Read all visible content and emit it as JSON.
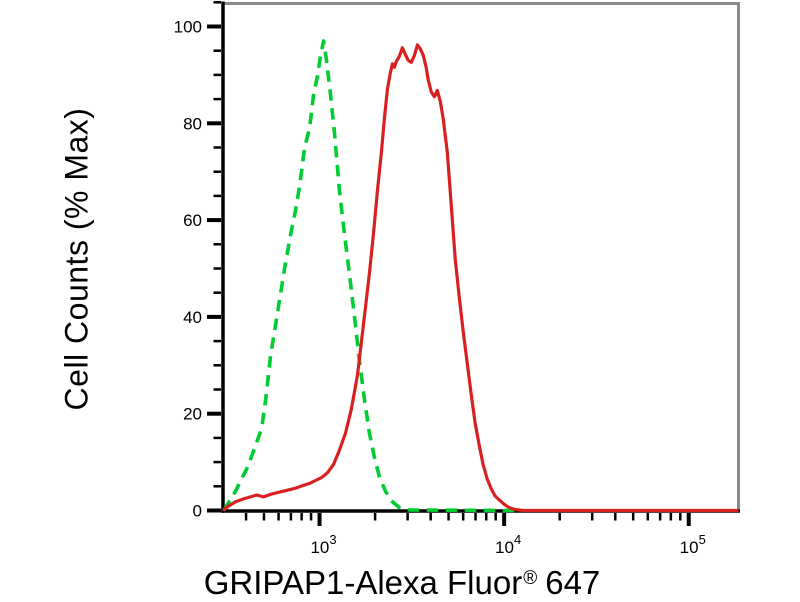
{
  "figure": {
    "background": "#ffffff"
  },
  "chart_data": {
    "type": "line",
    "subtype": "flow-cytometry-histogram",
    "title": "",
    "xlabel": "GRIPAP1-Alexa Fluor® 647",
    "xlabel_parts": {
      "main": "GRIPAP1-Alexa Fluor",
      "registered": "®",
      "suffix": "647"
    },
    "ylabel": "Cell Counts (% Max)",
    "x_scale": "log",
    "x_range": [
      300,
      186000
    ],
    "x_major_ticks": [
      1000,
      10000,
      100000
    ],
    "x_major_tick_labels": [
      "10^3",
      "10^4",
      "10^5"
    ],
    "y_major_ticks": [
      0,
      20,
      40,
      60,
      80,
      100
    ],
    "y_minor_step": 5,
    "ylim": [
      0,
      105
    ],
    "grid": false,
    "legend": false,
    "axis_color": "#000000",
    "frame_color": "#8a8a8a",
    "series": [
      {
        "name": "green-dashed-curve",
        "color": "#00cc33",
        "line_style": "dashed",
        "points": [
          [
            303,
            0
          ],
          [
            326,
            2
          ],
          [
            351,
            4
          ],
          [
            378,
            6.5
          ],
          [
            408,
            9
          ],
          [
            446,
            13
          ],
          [
            486,
            17
          ],
          [
            511,
            23
          ],
          [
            543,
            32
          ],
          [
            593,
            41
          ],
          [
            647,
            50
          ],
          [
            697,
            57
          ],
          [
            741,
            62
          ],
          [
            780,
            67
          ],
          [
            830,
            75
          ],
          [
            883,
            79
          ],
          [
            929,
            86
          ],
          [
            977,
            90
          ],
          [
            1012,
            94
          ],
          [
            1052,
            97
          ],
          [
            1091,
            93
          ],
          [
            1146,
            86
          ],
          [
            1205,
            78
          ],
          [
            1283,
            66
          ],
          [
            1365,
            57
          ],
          [
            1452,
            49
          ],
          [
            1546,
            40
          ],
          [
            1645,
            31
          ],
          [
            1750,
            23
          ],
          [
            1862,
            16
          ],
          [
            1982,
            11
          ],
          [
            2109,
            7
          ],
          [
            2274,
            4
          ],
          [
            2451,
            2
          ],
          [
            2705,
            0.6
          ],
          [
            3063,
            0.1
          ],
          [
            12000,
            0
          ]
        ]
      },
      {
        "name": "red-solid-curve",
        "color": "#d92020",
        "line_style": "solid",
        "points": [
          [
            300,
            0
          ],
          [
            318,
            0.8
          ],
          [
            351,
            1.8
          ],
          [
            388,
            2.4
          ],
          [
            429,
            2.9
          ],
          [
            457,
            3.2
          ],
          [
            498,
            2.8
          ],
          [
            550,
            3.4
          ],
          [
            608,
            3.8
          ],
          [
            671,
            4.2
          ],
          [
            741,
            4.6
          ],
          [
            820,
            5.2
          ],
          [
            883,
            5.6
          ],
          [
            951,
            6.2
          ],
          [
            1025,
            6.8
          ],
          [
            1104,
            7.8
          ],
          [
            1191,
            9.5
          ],
          [
            1283,
            12.5
          ],
          [
            1383,
            16
          ],
          [
            1489,
            21
          ],
          [
            1605,
            28
          ],
          [
            1687,
            35
          ],
          [
            1774,
            42
          ],
          [
            1862,
            49
          ],
          [
            1959,
            57
          ],
          [
            2059,
            66
          ],
          [
            2163,
            74
          ],
          [
            2245,
            81
          ],
          [
            2333,
            87
          ],
          [
            2421,
            90.5
          ],
          [
            2481,
            92.3
          ],
          [
            2543,
            91.6
          ],
          [
            2607,
            92.8
          ],
          [
            2705,
            93.8
          ],
          [
            2812,
            95.6
          ],
          [
            2917,
            94.2
          ],
          [
            3027,
            93
          ],
          [
            3141,
            92.6
          ],
          [
            3266,
            94
          ],
          [
            3388,
            96.2
          ],
          [
            3516,
            95.4
          ],
          [
            3648,
            94
          ],
          [
            3785,
            91.5
          ],
          [
            3880,
            89
          ],
          [
            4028,
            86.5
          ],
          [
            4188,
            85.5
          ],
          [
            4345,
            86.8
          ],
          [
            4508,
            84.5
          ],
          [
            4677,
            81
          ],
          [
            4920,
            74
          ],
          [
            5176,
            63
          ],
          [
            5433,
            52
          ],
          [
            5713,
            44
          ],
          [
            5998,
            37
          ],
          [
            6310,
            30.5
          ],
          [
            6634,
            24
          ],
          [
            6966,
            18
          ],
          [
            7328,
            13.5
          ],
          [
            7691,
            9.5
          ],
          [
            8091,
            6.5
          ],
          [
            8511,
            4.5
          ],
          [
            8933,
            3
          ],
          [
            9397,
            2.2
          ],
          [
            10000,
            1.3
          ],
          [
            10640,
            0.6
          ],
          [
            11470,
            0.2
          ],
          [
            12680,
            0
          ],
          [
            186000,
            0
          ]
        ]
      }
    ]
  }
}
